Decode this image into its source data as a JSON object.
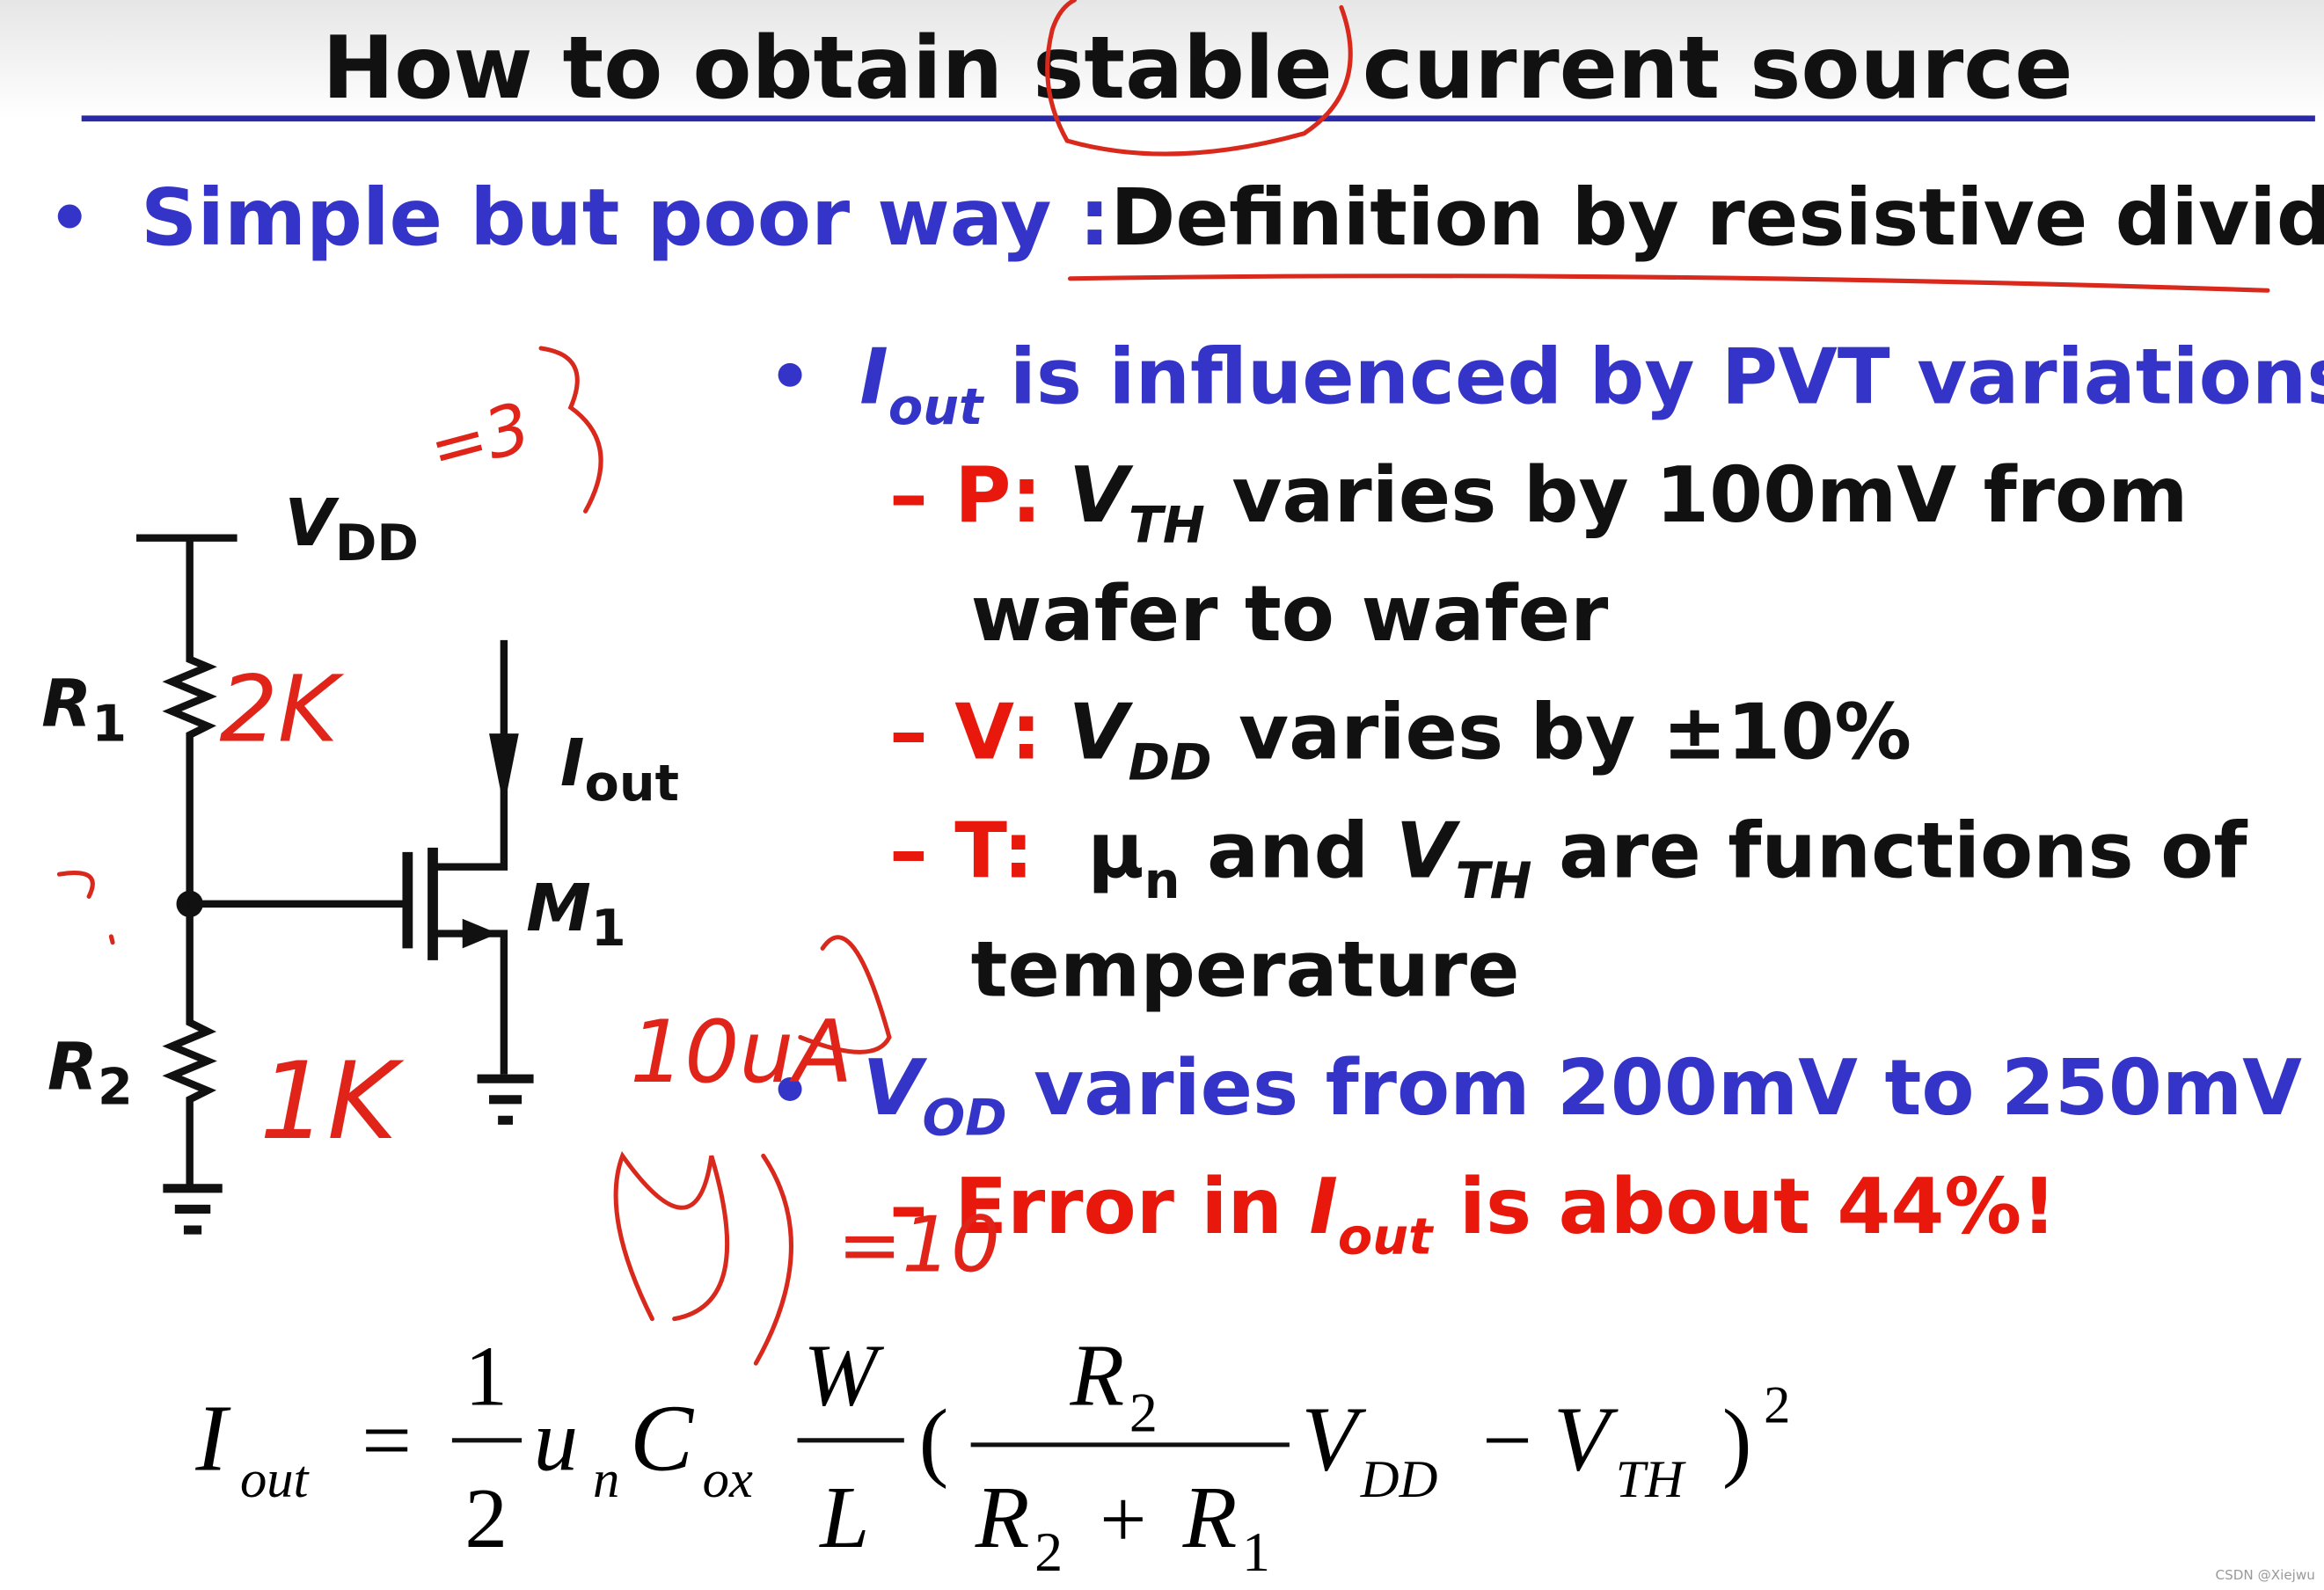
{
  "header": {
    "title": "How to obtain stable current source"
  },
  "intro": {
    "lead": "Simple but poor way :",
    "text": "Definition by resistive divider."
  },
  "pvt": {
    "symbol": "I",
    "symbol_sub": "out",
    "text": " is influenced by PVT variations",
    "items": [
      {
        "label": "– P: ",
        "symbol": "V",
        "symbol_sub": "TH",
        "text": " varies by 100mV from",
        "text2": "wafer to wafer"
      },
      {
        "label": "– V: ",
        "symbol": "V",
        "symbol_sub": "DD",
        "text": " varies by ±10%"
      },
      {
        "label": "– T:",
        "symbol": "  μ",
        "symbol_sub": "n",
        "mid": " and ",
        "symbol2": "V",
        "symbol2_sub": "TH",
        "text": " are functions of",
        "text2": "temperature"
      }
    ]
  },
  "overdrive": {
    "symbol": "V",
    "symbol_sub": "OD",
    "text": " varies from 200mV to 250mV",
    "item": {
      "label": "– Error in ",
      "symbol": "I",
      "symbol_sub": "out",
      "text": " is about 44%!"
    }
  },
  "circuit": {
    "vdd": "V",
    "vdd_sub": "DD",
    "r1": "R",
    "r1_sub": "1",
    "r2": "R",
    "r2_sub": "2",
    "iout": "I",
    "iout_sub": "out",
    "m1": "M",
    "m1_sub": "1"
  },
  "formula": {
    "parts": [
      "I",
      "out",
      "=",
      "1",
      "2",
      "u",
      "n",
      "C",
      "ox",
      "W",
      "L",
      "(",
      "R",
      "2",
      "R",
      "2",
      "+",
      "R",
      "1",
      "V",
      "DD",
      "−",
      "V",
      "TH",
      ")",
      "2"
    ]
  },
  "annotations": [
    "=3",
    "2K",
    "1K",
    "10uA",
    "=10"
  ],
  "watermark": "CSDN @Xiejwu"
}
